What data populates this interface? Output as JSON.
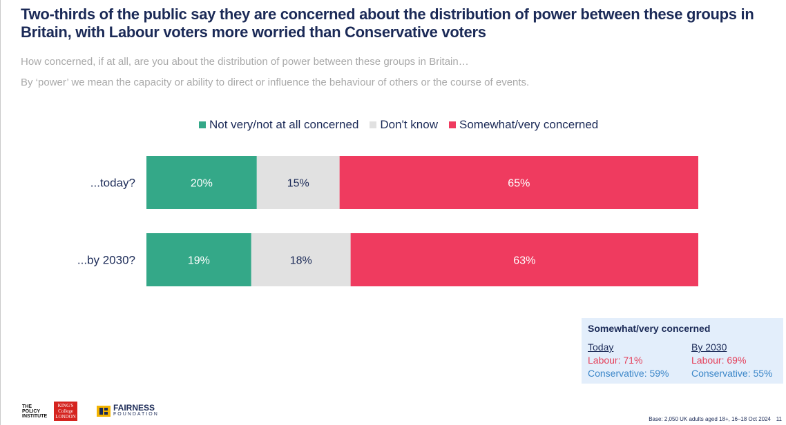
{
  "title": "Two-thirds of the public say they are concerned about the distribution of power between these groups in Britain, with Labour voters more worried than Conservative voters",
  "subtitle_1": "How concerned, if at all, are you about the distribution of power between these groups in Britain…",
  "subtitle_2": "By ‘power’ we mean the capacity or ability to direct or influence the behaviour of others or the course of events.",
  "colors": {
    "not_concerned": "#34a888",
    "dont_know": "#e1e1e1",
    "concerned": "#ef3b5f",
    "label_light": "#ffffff",
    "label_dark": "#1b2a57"
  },
  "chart_data": {
    "type": "bar",
    "orientation": "horizontal",
    "stacked": true,
    "categories": [
      "...today?",
      "...by 2030?"
    ],
    "series": [
      {
        "name": "Not very/not at all concerned",
        "values": [
          20,
          19
        ],
        "labels": [
          "20%",
          "19%"
        ],
        "color": "#34a888"
      },
      {
        "name": "Don't know",
        "values": [
          15,
          18
        ],
        "labels": [
          "15%",
          "18%"
        ],
        "color": "#e1e1e1"
      },
      {
        "name": "Somewhat/very concerned",
        "values": [
          65,
          63
        ],
        "labels": [
          "65%",
          "63%"
        ],
        "color": "#ef3b5f"
      }
    ],
    "xlim": [
      0,
      100
    ],
    "grid": false,
    "legend_position": "top"
  },
  "callout": {
    "heading": "Somewhat/very concerned",
    "today": {
      "label": "Today",
      "labour": "Labour: 71%",
      "conservative": "Conservative: 59%"
    },
    "by2030": {
      "label": "By 2030",
      "labour": "Labour: 69%",
      "conservative": "Conservative: 55%"
    }
  },
  "logos": {
    "policy_institute": "THE POLICY INSTITUTE",
    "kcl_line1": "KING'S",
    "kcl_line2": "College",
    "kcl_line3": "LONDON",
    "fairness_name": "FAIRNESS",
    "fairness_sub": "FOUNDATION"
  },
  "footer": "Base: 2,050 UK adults aged 18+, 16–18 Oct 2024",
  "page_number": "11"
}
